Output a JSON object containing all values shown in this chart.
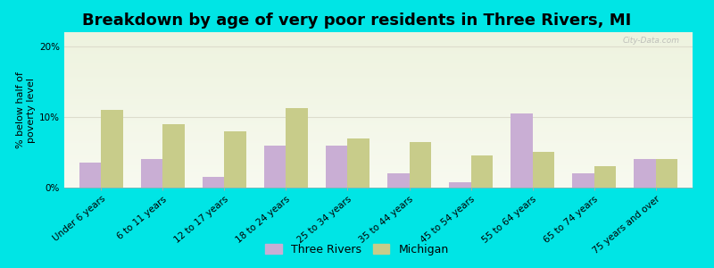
{
  "title": "Breakdown by age of very poor residents in Three Rivers, MI",
  "ylabel": "% below half of\npoverty level",
  "categories": [
    "Under 6 years",
    "6 to 11 years",
    "12 to 17 years",
    "18 to 24 years",
    "25 to 34 years",
    "35 to 44 years",
    "45 to 54 years",
    "55 to 64 years",
    "65 to 74 years",
    "75 years and over"
  ],
  "three_rivers": [
    3.5,
    4.0,
    1.5,
    6.0,
    6.0,
    2.0,
    0.8,
    10.5,
    2.0,
    4.0
  ],
  "michigan": [
    11.0,
    9.0,
    8.0,
    11.2,
    7.0,
    6.5,
    4.5,
    5.0,
    3.0,
    4.0
  ],
  "color_three_rivers": "#c9aed4",
  "color_michigan": "#c8cc8a",
  "background_outer": "#00e5e5",
  "background_plot_top": "#eef3df",
  "background_plot_bottom": "#f8faf0",
  "ylim": [
    0,
    22
  ],
  "yticks": [
    0,
    10,
    20
  ],
  "ytick_labels": [
    "0%",
    "10%",
    "20%"
  ],
  "bar_width": 0.35,
  "title_fontsize": 13,
  "axis_label_fontsize": 8,
  "tick_fontsize": 7.5,
  "legend_fontsize": 9,
  "watermark": "City-Data.com"
}
